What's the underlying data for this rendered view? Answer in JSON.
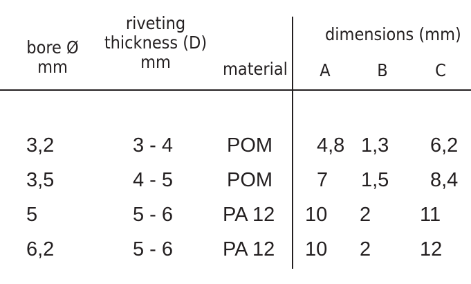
{
  "headers": {
    "bore": [
      "bore Ø",
      "mm"
    ],
    "riveting": [
      "riveting",
      "thickness (D)",
      "mm"
    ],
    "material": "material",
    "dimensions": "dimensions (mm)",
    "dims": [
      "A",
      "B",
      "C"
    ]
  },
  "rows": [
    {
      "bore": "3,2",
      "thickness": "3 - 4",
      "material": "POM",
      "a": "4,8",
      "b": "1,3",
      "c": "6,2"
    },
    {
      "bore": "3,5",
      "thickness": "4 - 5",
      "material": "POM",
      "a": "7",
      "b": "1,5",
      "c": "8,4"
    },
    {
      "bore": "5",
      "thickness": "5 - 6",
      "material": "PA 12",
      "a": "10",
      "b": "2",
      "c": "11"
    },
    {
      "bore": "6,2",
      "thickness": "5 - 6",
      "material": "PA 12",
      "a": "10",
      "b": "2",
      "c": "12"
    }
  ]
}
